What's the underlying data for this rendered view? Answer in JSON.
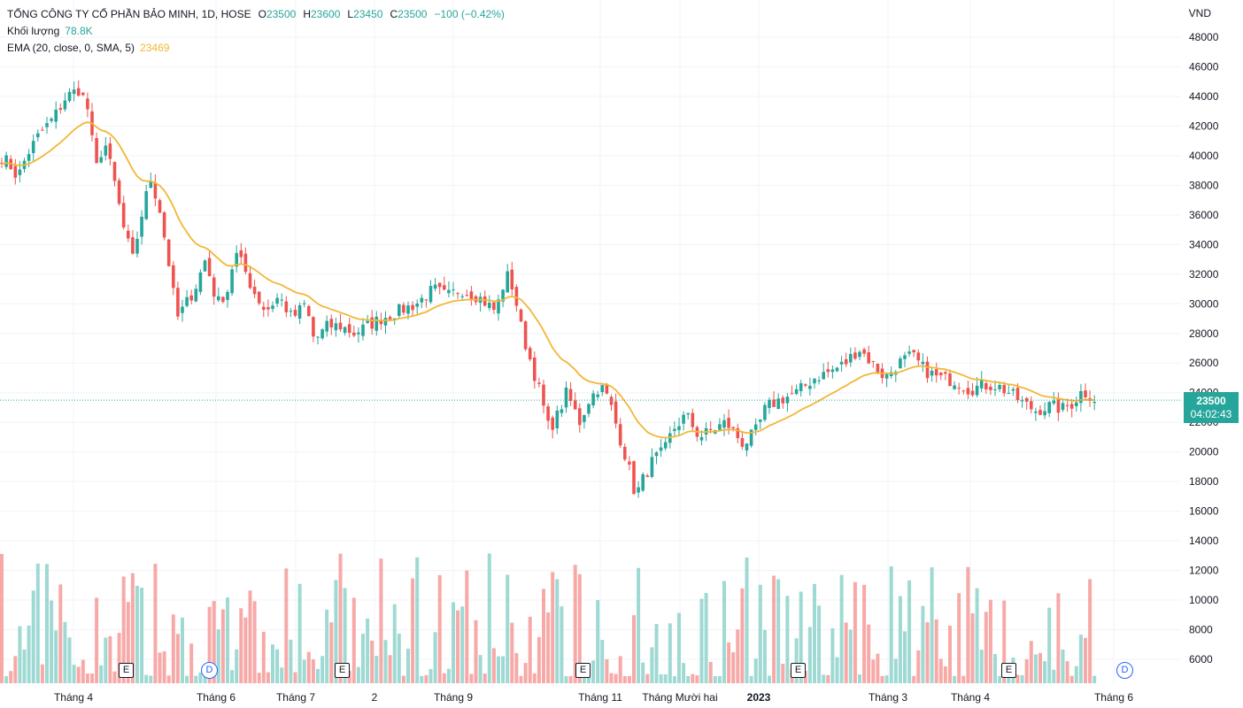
{
  "legend": {
    "symbol": "TỔNG CÔNG TY CỔ PHẦN BẢO MINH, 1D, HOSE",
    "open_label": "O",
    "open": "23500",
    "high_label": "H",
    "high": "23600",
    "low_label": "L",
    "low": "23450",
    "close_label": "C",
    "close": "23500",
    "change": "−100 (−0.42%)",
    "volume_label": "Khối lượng",
    "volume_value": "78.8K",
    "ema_label": "EMA (20, close, 0, SMA, 5)",
    "ema_value": "23469"
  },
  "currency": "VND",
  "price_tag": {
    "price": "23500",
    "countdown": "04:02:43"
  },
  "events": [
    {
      "type": "earnings",
      "glyph": "E"
    },
    {
      "type": "dividend",
      "glyph": "D"
    },
    {
      "type": "earnings",
      "glyph": "E"
    },
    {
      "type": "earnings",
      "glyph": "E"
    },
    {
      "type": "earnings",
      "glyph": "E"
    },
    {
      "type": "earnings",
      "glyph": "E"
    },
    {
      "type": "dividend",
      "glyph": "D"
    }
  ],
  "colors": {
    "up": "#26a69a",
    "down": "#ef5350",
    "ema": "#f2b735",
    "grid": "#f0f3fa",
    "vol_up": "#9fd9d3",
    "vol_down": "#f7a9a7",
    "dividend": "#2962ff"
  },
  "chart_data": {
    "type": "candlestick",
    "y_ticks": [
      6000,
      8000,
      10000,
      12000,
      14000,
      16000,
      18000,
      20000,
      22000,
      24000,
      26000,
      28000,
      30000,
      32000,
      34000,
      36000,
      38000,
      40000,
      42000,
      44000,
      46000,
      48000
    ],
    "x_tick_labels": [
      "Tháng 4",
      "Tháng 6",
      "Tháng 7",
      "2",
      "Tháng 9",
      "Tháng 11",
      "Tháng Mười hai",
      "2023",
      "Tháng 3",
      "Tháng 4",
      "Tháng 6"
    ],
    "last_price": 23500,
    "ema_last": 23469,
    "anchors": [
      [
        0,
        40000
      ],
      [
        10,
        39500
      ],
      [
        20,
        38500
      ],
      [
        30,
        40000
      ],
      [
        45,
        41500
      ],
      [
        60,
        42500
      ],
      [
        75,
        44000
      ],
      [
        90,
        44500
      ],
      [
        100,
        43000
      ],
      [
        108,
        39000
      ],
      [
        118,
        41000
      ],
      [
        130,
        38000
      ],
      [
        140,
        35000
      ],
      [
        150,
        33000
      ],
      [
        160,
        36000
      ],
      [
        170,
        38500
      ],
      [
        180,
        36500
      ],
      [
        190,
        33000
      ],
      [
        200,
        29000
      ],
      [
        210,
        30000
      ],
      [
        220,
        31000
      ],
      [
        232,
        33000
      ],
      [
        245,
        30000
      ],
      [
        258,
        31000
      ],
      [
        265,
        33500
      ],
      [
        275,
        32500
      ],
      [
        285,
        31000
      ],
      [
        300,
        29500
      ],
      [
        315,
        30500
      ],
      [
        330,
        29000
      ],
      [
        345,
        30000
      ],
      [
        355,
        27500
      ],
      [
        370,
        28500
      ],
      [
        385,
        28500
      ],
      [
        400,
        28000
      ],
      [
        415,
        28500
      ],
      [
        430,
        29000
      ],
      [
        450,
        29500
      ],
      [
        470,
        30000
      ],
      [
        490,
        31000
      ],
      [
        505,
        30500
      ],
      [
        520,
        31000
      ],
      [
        540,
        30500
      ],
      [
        560,
        29500
      ],
      [
        572,
        32000
      ],
      [
        580,
        31000
      ],
      [
        590,
        28000
      ],
      [
        600,
        26000
      ],
      [
        610,
        24000
      ],
      [
        620,
        21500
      ],
      [
        630,
        22500
      ],
      [
        640,
        24000
      ],
      [
        655,
        22000
      ],
      [
        665,
        23500
      ],
      [
        678,
        24500
      ],
      [
        688,
        23500
      ],
      [
        700,
        21000
      ],
      [
        710,
        19000
      ],
      [
        718,
        17000
      ],
      [
        725,
        18000
      ],
      [
        738,
        19500
      ],
      [
        750,
        20000
      ],
      [
        760,
        21500
      ],
      [
        775,
        22500
      ],
      [
        790,
        21000
      ],
      [
        805,
        21500
      ],
      [
        820,
        22000
      ],
      [
        840,
        20500
      ],
      [
        855,
        21500
      ],
      [
        865,
        23000
      ],
      [
        880,
        23500
      ],
      [
        900,
        24000
      ],
      [
        920,
        25000
      ],
      [
        940,
        25500
      ],
      [
        955,
        26000
      ],
      [
        970,
        27000
      ],
      [
        985,
        26000
      ],
      [
        1000,
        25000
      ],
      [
        1015,
        26000
      ],
      [
        1030,
        26500
      ],
      [
        1045,
        25500
      ],
      [
        1060,
        25000
      ],
      [
        1080,
        24800
      ],
      [
        1095,
        24200
      ],
      [
        1110,
        24500
      ],
      [
        1125,
        24500
      ],
      [
        1140,
        24000
      ],
      [
        1155,
        23300
      ],
      [
        1170,
        22800
      ],
      [
        1185,
        23100
      ],
      [
        1200,
        22900
      ],
      [
        1212,
        23300
      ],
      [
        1222,
        24100
      ],
      [
        1232,
        23800
      ],
      [
        1238,
        23500
      ]
    ]
  }
}
